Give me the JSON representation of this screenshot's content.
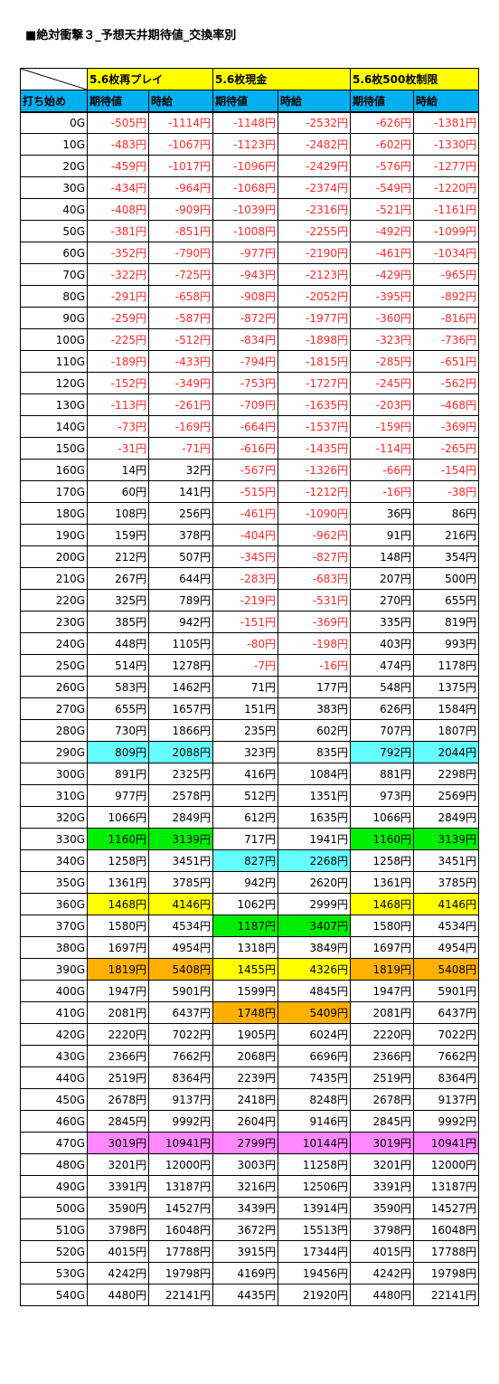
{
  "title": "■絶対衝撃３_予想天井期待値_交換率別",
  "colors": {
    "group_header": "#ffff00",
    "column_header": "#00b0f0",
    "negative_text": "#ff2a2a",
    "cyan": "#66ffff",
    "green": "#00ee00",
    "yellow": "#ffff00",
    "orange": "#ffb000",
    "magenta": "#ff88ff"
  },
  "chart_data": {
    "type": "table",
    "row_header": "打ち始め",
    "groups": [
      "5.6枚再プレイ",
      "5.6枚現金",
      "5.6枚500枚制限"
    ],
    "columns": [
      "期待値",
      "時給"
    ],
    "unit": "円",
    "rows": [
      {
        "start": "0G",
        "values": [
          -505,
          -1114,
          -1148,
          -2532,
          -626,
          -1381
        ]
      },
      {
        "start": "10G",
        "values": [
          -483,
          -1067,
          -1123,
          -2482,
          -602,
          -1330
        ]
      },
      {
        "start": "20G",
        "values": [
          -459,
          -1017,
          -1096,
          -2429,
          -576,
          -1277
        ]
      },
      {
        "start": "30G",
        "values": [
          -434,
          -964,
          -1068,
          -2374,
          -549,
          -1220
        ]
      },
      {
        "start": "40G",
        "values": [
          -408,
          -909,
          -1039,
          -2316,
          -521,
          -1161
        ]
      },
      {
        "start": "50G",
        "values": [
          -381,
          -851,
          -1008,
          -2255,
          -492,
          -1099
        ]
      },
      {
        "start": "60G",
        "values": [
          -352,
          -790,
          -977,
          -2190,
          -461,
          -1034
        ]
      },
      {
        "start": "70G",
        "values": [
          -322,
          -725,
          -943,
          -2123,
          -429,
          -965
        ]
      },
      {
        "start": "80G",
        "values": [
          -291,
          -658,
          -908,
          -2052,
          -395,
          -892
        ]
      },
      {
        "start": "90G",
        "values": [
          -259,
          -587,
          -872,
          -1977,
          -360,
          -816
        ]
      },
      {
        "start": "100G",
        "values": [
          -225,
          -512,
          -834,
          -1898,
          -323,
          -736
        ]
      },
      {
        "start": "110G",
        "values": [
          -189,
          -433,
          -794,
          -1815,
          -285,
          -651
        ]
      },
      {
        "start": "120G",
        "values": [
          -152,
          -349,
          -753,
          -1727,
          -245,
          -562
        ]
      },
      {
        "start": "130G",
        "values": [
          -113,
          -261,
          -709,
          -1635,
          -203,
          -468
        ]
      },
      {
        "start": "140G",
        "values": [
          -73,
          -169,
          -664,
          -1537,
          -159,
          -369
        ]
      },
      {
        "start": "150G",
        "values": [
          -31,
          -71,
          -616,
          -1435,
          -114,
          -265
        ]
      },
      {
        "start": "160G",
        "values": [
          14,
          32,
          -567,
          -1326,
          -66,
          -154
        ]
      },
      {
        "start": "170G",
        "values": [
          60,
          141,
          -515,
          -1212,
          -16,
          -38
        ]
      },
      {
        "start": "180G",
        "values": [
          108,
          256,
          -461,
          -1090,
          36,
          86
        ]
      },
      {
        "start": "190G",
        "values": [
          159,
          378,
          -404,
          -962,
          91,
          216
        ]
      },
      {
        "start": "200G",
        "values": [
          212,
          507,
          -345,
          -827,
          148,
          354
        ]
      },
      {
        "start": "210G",
        "values": [
          267,
          644,
          -283,
          -683,
          207,
          500
        ]
      },
      {
        "start": "220G",
        "values": [
          325,
          789,
          -219,
          -531,
          270,
          655
        ]
      },
      {
        "start": "230G",
        "values": [
          385,
          942,
          -151,
          -369,
          335,
          819
        ]
      },
      {
        "start": "240G",
        "values": [
          448,
          1105,
          -80,
          -198,
          403,
          993
        ]
      },
      {
        "start": "250G",
        "values": [
          514,
          1278,
          -7,
          -16,
          474,
          1178
        ]
      },
      {
        "start": "260G",
        "values": [
          583,
          1462,
          71,
          177,
          548,
          1375
        ]
      },
      {
        "start": "270G",
        "values": [
          655,
          1657,
          151,
          383,
          626,
          1584
        ]
      },
      {
        "start": "280G",
        "values": [
          730,
          1866,
          235,
          602,
          707,
          1807
        ]
      },
      {
        "start": "290G",
        "values": [
          809,
          2088,
          323,
          835,
          792,
          2044
        ],
        "hl": [
          "cyan",
          "cyan",
          "",
          "",
          "cyan",
          "cyan"
        ]
      },
      {
        "start": "300G",
        "values": [
          891,
          2325,
          416,
          1084,
          881,
          2298
        ]
      },
      {
        "start": "310G",
        "values": [
          977,
          2578,
          512,
          1351,
          973,
          2569
        ]
      },
      {
        "start": "320G",
        "values": [
          1066,
          2849,
          612,
          1635,
          1066,
          2849
        ]
      },
      {
        "start": "330G",
        "values": [
          1160,
          3139,
          717,
          1941,
          1160,
          3139
        ],
        "hl": [
          "green",
          "green",
          "",
          "",
          "green",
          "green"
        ]
      },
      {
        "start": "340G",
        "values": [
          1258,
          3451,
          827,
          2268,
          1258,
          3451
        ],
        "hl": [
          "",
          "",
          "cyan",
          "cyan",
          "",
          ""
        ]
      },
      {
        "start": "350G",
        "values": [
          1361,
          3785,
          942,
          2620,
          1361,
          3785
        ]
      },
      {
        "start": "360G",
        "values": [
          1468,
          4146,
          1062,
          2999,
          1468,
          4146
        ],
        "hl": [
          "yellow",
          "yellow",
          "",
          "",
          "yellow",
          "yellow"
        ]
      },
      {
        "start": "370G",
        "values": [
          1580,
          4534,
          1187,
          3407,
          1580,
          4534
        ],
        "hl": [
          "",
          "",
          "green",
          "green",
          "",
          ""
        ]
      },
      {
        "start": "380G",
        "values": [
          1697,
          4954,
          1318,
          3849,
          1697,
          4954
        ]
      },
      {
        "start": "390G",
        "values": [
          1819,
          5408,
          1455,
          4326,
          1819,
          5408
        ],
        "hl": [
          "orange",
          "orange",
          "yellow",
          "yellow",
          "orange",
          "orange"
        ]
      },
      {
        "start": "400G",
        "values": [
          1947,
          5901,
          1599,
          4845,
          1947,
          5901
        ]
      },
      {
        "start": "410G",
        "values": [
          2081,
          6437,
          1748,
          5409,
          2081,
          6437
        ],
        "hl": [
          "",
          "",
          "orange",
          "orange",
          "",
          ""
        ]
      },
      {
        "start": "420G",
        "values": [
          2220,
          7022,
          1905,
          6024,
          2220,
          7022
        ]
      },
      {
        "start": "430G",
        "values": [
          2366,
          7662,
          2068,
          6696,
          2366,
          7662
        ]
      },
      {
        "start": "440G",
        "values": [
          2519,
          8364,
          2239,
          7435,
          2519,
          8364
        ]
      },
      {
        "start": "450G",
        "values": [
          2678,
          9137,
          2418,
          8248,
          2678,
          9137
        ]
      },
      {
        "start": "460G",
        "values": [
          2845,
          9992,
          2604,
          9146,
          2845,
          9992
        ]
      },
      {
        "start": "470G",
        "values": [
          3019,
          10941,
          2799,
          10144,
          3019,
          10941
        ],
        "hl": [
          "magenta",
          "magenta",
          "magenta",
          "magenta",
          "magenta",
          "magenta"
        ]
      },
      {
        "start": "480G",
        "values": [
          3201,
          12000,
          3003,
          11258,
          3201,
          12000
        ]
      },
      {
        "start": "490G",
        "values": [
          3391,
          13187,
          3216,
          12506,
          3391,
          13187
        ]
      },
      {
        "start": "500G",
        "values": [
          3590,
          14527,
          3439,
          13914,
          3590,
          14527
        ]
      },
      {
        "start": "510G",
        "values": [
          3798,
          16048,
          3672,
          15513,
          3798,
          16048
        ]
      },
      {
        "start": "520G",
        "values": [
          4015,
          17788,
          3915,
          17344,
          4015,
          17788
        ]
      },
      {
        "start": "530G",
        "values": [
          4242,
          19798,
          4169,
          19456,
          4242,
          19798
        ]
      },
      {
        "start": "540G",
        "values": [
          4480,
          22141,
          4435,
          21920,
          4480,
          22141
        ]
      }
    ]
  }
}
